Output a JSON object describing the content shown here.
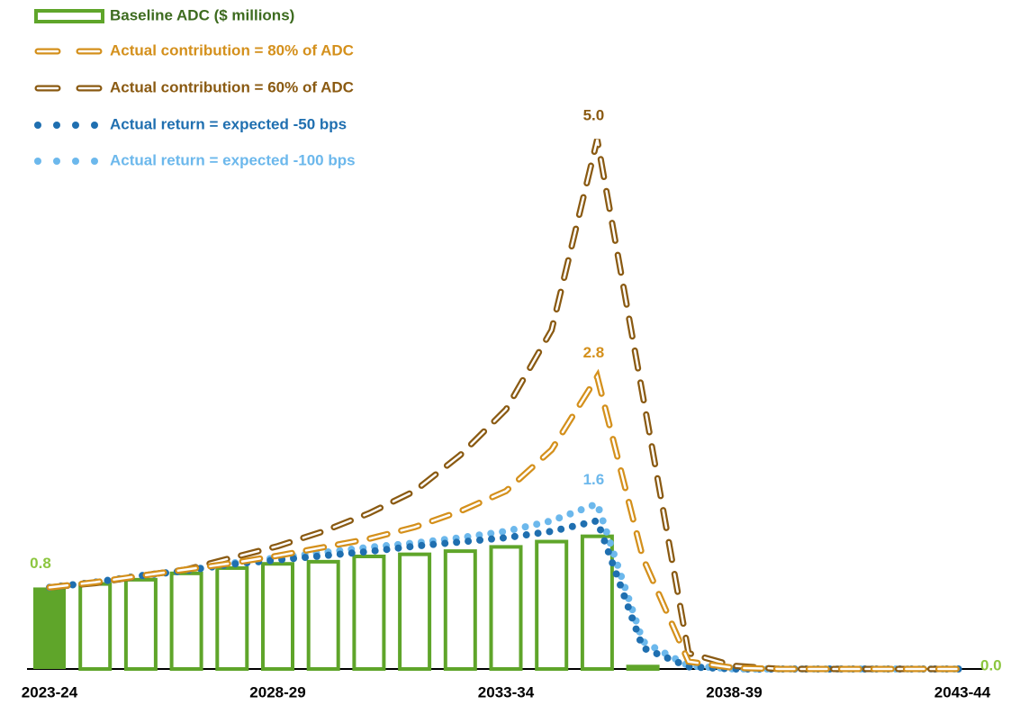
{
  "chart_data": {
    "type": "bar",
    "categories": [
      "2023-24",
      null,
      null,
      null,
      null,
      "2028-29",
      null,
      null,
      null,
      null,
      "2033-34",
      null,
      null,
      null,
      null,
      "2038-39",
      null,
      null,
      null,
      null,
      "2043-44"
    ],
    "ylim": [
      0,
      5
    ],
    "series": [
      {
        "name": "Baseline ADC ($ millions)",
        "type": "bar",
        "color": "#5fa52a",
        "label_color": "#8cc63f",
        "values": [
          0.77,
          0.82,
          0.86,
          0.92,
          0.97,
          1.01,
          1.03,
          1.08,
          1.1,
          1.13,
          1.17,
          1.22,
          1.27,
          0.04,
          0,
          0,
          0,
          0,
          0,
          0,
          0
        ],
        "value_labels": [
          "0.8",
          null,
          null,
          null,
          null,
          null,
          null,
          null,
          null,
          null,
          null,
          null,
          null,
          null,
          null,
          null,
          null,
          null,
          null,
          null,
          "0.0"
        ]
      },
      {
        "name": "Actual contribution = 80% of ADC",
        "type": "line",
        "style": "dashed",
        "color": "#d4901c",
        "values": [
          0.77,
          0.82,
          0.88,
          0.94,
          1.0,
          1.07,
          1.15,
          1.23,
          1.34,
          1.49,
          1.68,
          2.07,
          2.76,
          1.05,
          0.07,
          0.01,
          0,
          0,
          0,
          0,
          0
        ],
        "value_labels": [
          null,
          null,
          null,
          null,
          null,
          null,
          null,
          null,
          null,
          null,
          null,
          null,
          "2.8",
          null,
          null,
          null,
          null,
          null,
          null,
          null,
          null
        ]
      },
      {
        "name": "Actual contribution = 60% of ADC",
        "type": "line",
        "style": "dashed",
        "color": "#8a5a12",
        "values": [
          0.77,
          0.81,
          0.88,
          0.94,
          1.05,
          1.16,
          1.3,
          1.47,
          1.68,
          2.02,
          2.45,
          3.2,
          5.0,
          2.58,
          0.15,
          0.03,
          0,
          0,
          0,
          0,
          0
        ],
        "value_labels": [
          null,
          null,
          null,
          null,
          null,
          null,
          null,
          null,
          null,
          null,
          null,
          null,
          "5.0",
          null,
          null,
          null,
          null,
          null,
          null,
          null,
          null
        ]
      },
      {
        "name": "Actual return = expected -50 bps",
        "type": "line",
        "style": "dotted",
        "color": "#1f6fb0",
        "values": [
          0.77,
          0.82,
          0.88,
          0.93,
          0.99,
          1.03,
          1.07,
          1.11,
          1.16,
          1.2,
          1.24,
          1.3,
          1.4,
          0.2,
          0.02,
          0,
          0,
          0,
          0,
          0,
          0
        ]
      },
      {
        "name": "Actual return = expected -100 bps",
        "type": "line",
        "style": "dotted",
        "color": "#6cb8ec",
        "values": [
          0.77,
          0.82,
          0.88,
          0.93,
          1.0,
          1.05,
          1.1,
          1.15,
          1.19,
          1.24,
          1.3,
          1.4,
          1.56,
          0.26,
          0.03,
          0,
          0,
          0,
          0,
          0,
          0
        ],
        "value_labels": [
          null,
          null,
          null,
          null,
          null,
          null,
          null,
          null,
          null,
          null,
          null,
          null,
          "1.6",
          null,
          null,
          null,
          null,
          null,
          null,
          null,
          null
        ]
      }
    ]
  }
}
